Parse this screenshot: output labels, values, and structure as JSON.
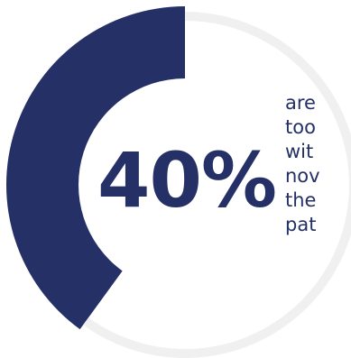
{
  "chart_data": {
    "type": "pie",
    "variant": "donut",
    "percent": 40,
    "slices": [
      {
        "value": 40,
        "color": "#243066"
      },
      {
        "value": 60,
        "color": "#f0f0f0"
      }
    ],
    "center_label": "40%",
    "side_text_lines": [
      "are",
      "too",
      "wit",
      "nov",
      "the",
      "pat"
    ]
  },
  "colors": {
    "accent": "#243066",
    "track": "#f0f0f0"
  }
}
